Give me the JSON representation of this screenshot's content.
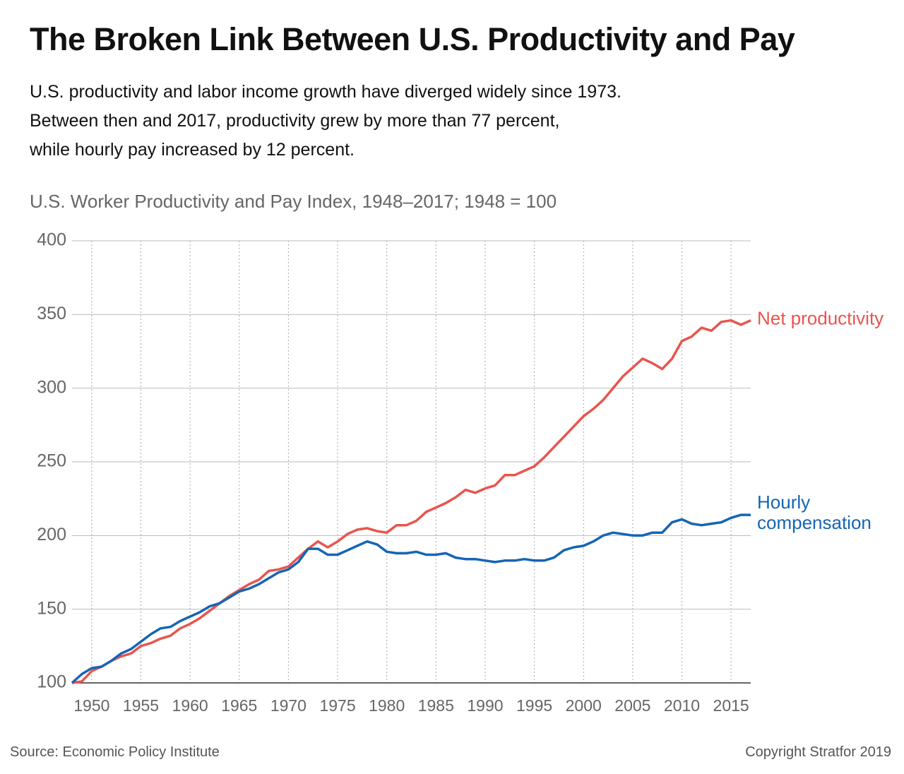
{
  "chart_data": {
    "type": "line",
    "title": "The Broken Link Between U.S. Productivity and Pay",
    "subtitle": [
      "U.S. productivity and labor income growth have diverged widely since 1973.",
      "Between then and 2017, productivity grew by more than 77 percent,",
      "while hourly pay increased by 12 percent."
    ],
    "chart_label": "U.S. Worker Productivity and Pay Index, 1948–2017; 1948 = 100",
    "source": "Source: Economic Policy Institute",
    "copyright": "Copyright Stratfor 2019",
    "x": [
      1948,
      1949,
      1950,
      1951,
      1952,
      1953,
      1954,
      1955,
      1956,
      1957,
      1958,
      1959,
      1960,
      1961,
      1962,
      1963,
      1964,
      1965,
      1966,
      1967,
      1968,
      1969,
      1970,
      1971,
      1972,
      1973,
      1974,
      1975,
      1976,
      1977,
      1978,
      1979,
      1980,
      1981,
      1982,
      1983,
      1984,
      1985,
      1986,
      1987,
      1988,
      1989,
      1990,
      1991,
      1992,
      1993,
      1994,
      1995,
      1996,
      1997,
      1998,
      1999,
      2000,
      2001,
      2002,
      2003,
      2004,
      2005,
      2006,
      2007,
      2008,
      2009,
      2010,
      2011,
      2012,
      2013,
      2014,
      2015,
      2016,
      2017
    ],
    "series": [
      {
        "name": "Net productivity",
        "color": "#e8554e",
        "values": [
          100,
          101,
          108,
          111,
          115,
          118,
          120,
          125,
          127,
          130,
          132,
          137,
          140,
          144,
          149,
          154,
          159,
          163,
          167,
          170,
          176,
          177,
          179,
          185,
          191,
          196,
          192,
          196,
          201,
          204,
          205,
          203,
          202,
          207,
          207,
          210,
          216,
          219,
          222,
          226,
          231,
          229,
          232,
          234,
          241,
          241,
          244,
          247,
          253,
          260,
          267,
          274,
          281,
          286,
          292,
          300,
          308,
          314,
          320,
          317,
          313,
          320,
          332,
          335,
          341,
          339,
          345,
          346,
          343,
          346
        ]
      },
      {
        "name": "Hourly compensation",
        "color": "#1565b5",
        "values": [
          100,
          106,
          110,
          111,
          115,
          120,
          123,
          128,
          133,
          137,
          138,
          142,
          145,
          148,
          152,
          154,
          158,
          162,
          164,
          167,
          171,
          175,
          177,
          182,
          191,
          191,
          187,
          187,
          190,
          193,
          196,
          194,
          189,
          188,
          188,
          189,
          187,
          187,
          188,
          185,
          184,
          184,
          183,
          182,
          183,
          183,
          184,
          183,
          183,
          185,
          190,
          192,
          193,
          196,
          200,
          202,
          201,
          200,
          200,
          202,
          202,
          209,
          211,
          208,
          207,
          208,
          209,
          212,
          214,
          214
        ]
      }
    ],
    "xlim": [
      1948,
      2017
    ],
    "xticks": [
      1950,
      1955,
      1960,
      1965,
      1970,
      1975,
      1980,
      1985,
      1990,
      1995,
      2000,
      2005,
      2010,
      2015
    ],
    "ylim": [
      100,
      400
    ],
    "yticks": [
      100,
      150,
      200,
      250,
      300,
      350,
      400
    ],
    "grid": true
  }
}
